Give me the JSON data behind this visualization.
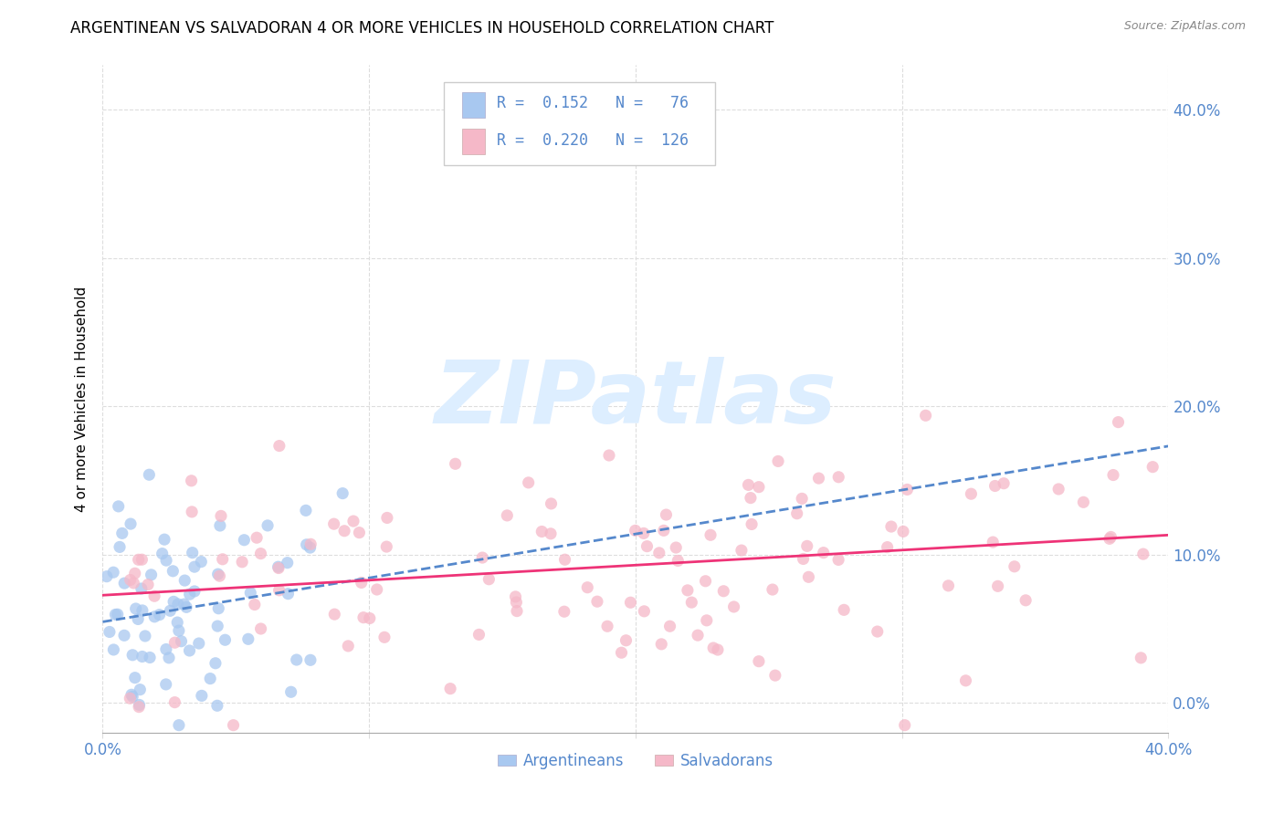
{
  "title": "ARGENTINEAN VS SALVADORAN 4 OR MORE VEHICLES IN HOUSEHOLD CORRELATION CHART",
  "source": "Source: ZipAtlas.com",
  "ylabel": "4 or more Vehicles in Household",
  "xlim": [
    0.0,
    0.4
  ],
  "ylim": [
    -0.02,
    0.43
  ],
  "argentinean_R": 0.152,
  "argentinean_N": 76,
  "salvadoran_R": 0.22,
  "salvadoran_N": 126,
  "argentinean_color": "#A8C8F0",
  "salvadoran_color": "#F5B8C8",
  "argentinean_line_color": "#5588CC",
  "salvadoran_line_color": "#EE3377",
  "title_fontsize": 12,
  "source_fontsize": 9,
  "tick_color": "#5588CC",
  "grid_color": "#DDDDDD",
  "watermark": "ZIPatlas",
  "watermark_color": "#DDEEFF",
  "legend_blue_label": "Argentineans",
  "legend_pink_label": "Salvadorans",
  "background_color": "#FFFFFF",
  "ytick_vals": [
    0.0,
    0.1,
    0.2,
    0.3,
    0.4
  ],
  "xtick_show": [
    0.0,
    0.4
  ]
}
